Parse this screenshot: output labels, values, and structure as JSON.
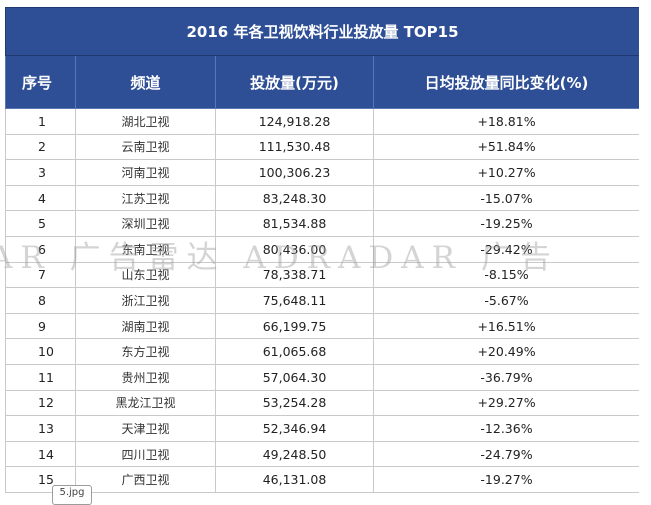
{
  "table": {
    "title": "2016 年各卫视饮料行业投放量 TOP15",
    "headers": [
      "序号",
      "频道",
      "投放量(万元)",
      "日均投放量同比变化(%)"
    ],
    "rows": [
      {
        "rank": "1",
        "channel": "湖北卫视",
        "amount": "124,918.28",
        "change": "+18.81%",
        "trend": "up"
      },
      {
        "rank": "2",
        "channel": "云南卫视",
        "amount": "111,530.48",
        "change": "+51.84%",
        "trend": "up"
      },
      {
        "rank": "3",
        "channel": "河南卫视",
        "amount": "100,306.23",
        "change": "+10.27%",
        "trend": "up"
      },
      {
        "rank": "4",
        "channel": "江苏卫视",
        "amount": "83,248.30",
        "change": "-15.07%",
        "trend": "down"
      },
      {
        "rank": "5",
        "channel": "深圳卫视",
        "amount": "81,534.88",
        "change": "-19.25%",
        "trend": "down"
      },
      {
        "rank": "6",
        "channel": "东南卫视",
        "amount": "80,436.00",
        "change": "-29.42%",
        "trend": "down"
      },
      {
        "rank": "7",
        "channel": "山东卫视",
        "amount": "78,338.71",
        "change": "-8.15%",
        "trend": "down"
      },
      {
        "rank": "8",
        "channel": "浙江卫视",
        "amount": "75,648.11",
        "change": "-5.67%",
        "trend": "down"
      },
      {
        "rank": "9",
        "channel": "湖南卫视",
        "amount": "66,199.75",
        "change": "+16.51%",
        "trend": "up"
      },
      {
        "rank": "10",
        "channel": "东方卫视",
        "amount": "61,065.68",
        "change": "+20.49%",
        "trend": "up"
      },
      {
        "rank": "11",
        "channel": "贵州卫视",
        "amount": "57,064.30",
        "change": "-36.79%",
        "trend": "down"
      },
      {
        "rank": "12",
        "channel": "黑龙江卫视",
        "amount": "53,254.28",
        "change": "+29.27%",
        "trend": "up"
      },
      {
        "rank": "13",
        "channel": "天津卫视",
        "amount": "52,346.94",
        "change": "-12.36%",
        "trend": "down"
      },
      {
        "rank": "14",
        "channel": "四川卫视",
        "amount": "49,248.50",
        "change": "-24.79%",
        "trend": "down"
      },
      {
        "rank": "15",
        "channel": "广西卫视",
        "amount": "46,131.08",
        "change": "-19.27%",
        "trend": "down"
      }
    ]
  },
  "watermark": "AR 广告雷达 ADRADAR 广告",
  "file_tag": "5.jpg",
  "colors": {
    "header_bg": "#2e4f95",
    "positive": "#e02020",
    "negative": "#33a52d"
  }
}
